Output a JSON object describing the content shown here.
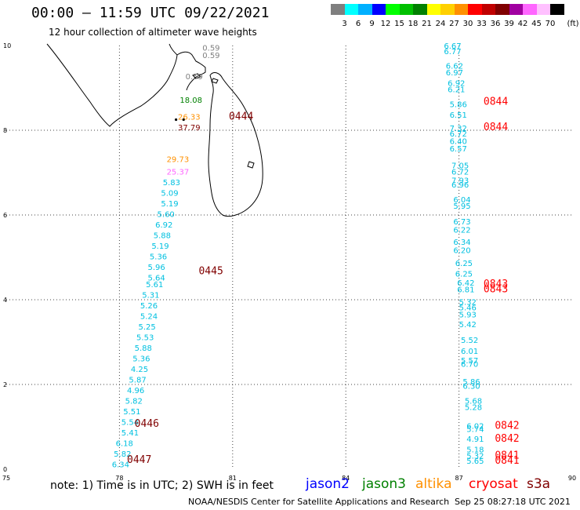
{
  "title": "00:00 – 11:59 UTC 09/22/2021",
  "subtitle": "12 hour collection of altimeter wave heights",
  "color_scale": {
    "unit": "(ft)",
    "bins": [
      {
        "label": "3",
        "color": "#7f7f7f"
      },
      {
        "label": "6",
        "color": "#00ffff"
      },
      {
        "label": "9",
        "color": "#00b0ff"
      },
      {
        "label": "12",
        "color": "#0000ff"
      },
      {
        "label": "15",
        "color": "#00ff00"
      },
      {
        "label": "18",
        "color": "#00c000"
      },
      {
        "label": "21",
        "color": "#008000"
      },
      {
        "label": "24",
        "color": "#ffff00"
      },
      {
        "label": "27",
        "color": "#ffd000"
      },
      {
        "label": "30",
        "color": "#ff9000"
      },
      {
        "label": "33",
        "color": "#ff0000"
      },
      {
        "label": "36",
        "color": "#c00000"
      },
      {
        "label": "39",
        "color": "#800000"
      },
      {
        "label": "42",
        "color": "#a000a0"
      },
      {
        "label": "45",
        "color": "#ff66ff"
      },
      {
        "label": "70",
        "color": "#ffc0ff"
      },
      {
        "label": "",
        "color": "#000000"
      }
    ]
  },
  "axes": {
    "x_ticks": [
      "75",
      "78",
      "81",
      "84",
      "87",
      "90"
    ],
    "y_ticks": [
      "0",
      "2",
      "4",
      "6",
      "8",
      "10"
    ]
  },
  "colors": {
    "cyan": "#00c0e0",
    "green": "#008000",
    "orange": "#ff9000",
    "gray": "#808080",
    "pink": "#ff66ff",
    "darkred": "#800000",
    "red": "#ff0000",
    "black": "#000000"
  },
  "west_track": {
    "points": [
      {
        "lon": 80.2,
        "lat": 9.88,
        "v": "0.59",
        "c": "gray"
      },
      {
        "lon": 80.2,
        "lat": 9.7,
        "v": "0.59",
        "c": "gray"
      },
      {
        "lon": 79.75,
        "lat": 9.2,
        "v": "0.59",
        "c": "gray"
      },
      {
        "lon": 79.6,
        "lat": 8.65,
        "v": "18.08",
        "c": "green"
      },
      {
        "lon": 79.55,
        "lat": 8.25,
        "v": "26.33",
        "c": "orange"
      },
      {
        "lon": 79.55,
        "lat": 8.0,
        "v": "37.79",
        "c": "darkred"
      },
      {
        "lon": 79.25,
        "lat": 7.25,
        "v": "29.73",
        "c": "orange"
      },
      {
        "lon": 79.25,
        "lat": 6.95,
        "v": "25.37",
        "c": "pink"
      },
      {
        "lon": 79.15,
        "lat": 6.7,
        "v": "5.83",
        "c": "cyan"
      },
      {
        "lon": 79.1,
        "lat": 6.45,
        "v": "5.09",
        "c": "cyan"
      },
      {
        "lon": 79.1,
        "lat": 6.2,
        "v": "5.19",
        "c": "cyan"
      },
      {
        "lon": 79.0,
        "lat": 5.95,
        "v": "5.60",
        "c": "cyan"
      },
      {
        "lon": 78.95,
        "lat": 5.7,
        "v": "6.92",
        "c": "cyan"
      },
      {
        "lon": 78.9,
        "lat": 5.45,
        "v": "5.88",
        "c": "cyan"
      },
      {
        "lon": 78.85,
        "lat": 5.2,
        "v": "5.19",
        "c": "cyan"
      },
      {
        "lon": 78.8,
        "lat": 4.95,
        "v": "5.36",
        "c": "cyan"
      },
      {
        "lon": 78.75,
        "lat": 4.7,
        "v": "5.96",
        "c": "cyan"
      },
      {
        "lon": 78.75,
        "lat": 4.45,
        "v": "5.64",
        "c": "cyan"
      },
      {
        "lon": 78.7,
        "lat": 4.3,
        "v": "5.61",
        "c": "cyan"
      },
      {
        "lon": 78.6,
        "lat": 4.05,
        "v": "5.31",
        "c": "cyan"
      },
      {
        "lon": 78.55,
        "lat": 3.8,
        "v": "5.26",
        "c": "cyan"
      },
      {
        "lon": 78.55,
        "lat": 3.55,
        "v": "5.24",
        "c": "cyan"
      },
      {
        "lon": 78.5,
        "lat": 3.3,
        "v": "5.25",
        "c": "cyan"
      },
      {
        "lon": 78.45,
        "lat": 3.05,
        "v": "5.53",
        "c": "cyan"
      },
      {
        "lon": 78.4,
        "lat": 2.8,
        "v": "5.88",
        "c": "cyan"
      },
      {
        "lon": 78.35,
        "lat": 2.55,
        "v": "5.36",
        "c": "cyan"
      },
      {
        "lon": 78.3,
        "lat": 2.3,
        "v": "4.25",
        "c": "cyan"
      },
      {
        "lon": 78.25,
        "lat": 2.05,
        "v": "5.87",
        "c": "cyan"
      },
      {
        "lon": 78.2,
        "lat": 1.8,
        "v": "4.96",
        "c": "cyan"
      },
      {
        "lon": 78.15,
        "lat": 1.55,
        "v": "5.82",
        "c": "cyan"
      },
      {
        "lon": 78.1,
        "lat": 1.3,
        "v": "5.51",
        "c": "cyan"
      },
      {
        "lon": 78.05,
        "lat": 1.05,
        "v": "5.54",
        "c": "cyan"
      },
      {
        "lon": 78.05,
        "lat": 0.8,
        "v": "5.41",
        "c": "cyan"
      },
      {
        "lon": 77.9,
        "lat": 0.55,
        "v": "6.18",
        "c": "cyan"
      },
      {
        "lon": 77.85,
        "lat": 0.3,
        "v": "5.82",
        "c": "cyan"
      },
      {
        "lon": 77.8,
        "lat": 0.05,
        "v": "6.34",
        "c": "cyan"
      }
    ],
    "times": [
      {
        "lon": 80.9,
        "lat": 8.25,
        "t": "0444"
      },
      {
        "lon": 80.1,
        "lat": 4.6,
        "t": "0445"
      },
      {
        "lon": 78.4,
        "lat": 1.0,
        "t": "0446"
      },
      {
        "lon": 78.2,
        "lat": 0.15,
        "t": "0447"
      }
    ]
  },
  "east_track": {
    "points": [
      {
        "lon": 86.6,
        "lat": 9.93,
        "v": "6.67",
        "c": "cyan"
      },
      {
        "lon": 86.6,
        "lat": 9.8,
        "v": "6.77",
        "c": "cyan"
      },
      {
        "lon": 86.65,
        "lat": 9.45,
        "v": "6.62",
        "c": "cyan"
      },
      {
        "lon": 86.65,
        "lat": 9.3,
        "v": "6.97",
        "c": "cyan"
      },
      {
        "lon": 86.7,
        "lat": 9.05,
        "v": "6.92",
        "c": "cyan"
      },
      {
        "lon": 86.7,
        "lat": 8.9,
        "v": "6.21",
        "c": "cyan"
      },
      {
        "lon": 86.75,
        "lat": 8.55,
        "v": "5.86",
        "c": "cyan"
      },
      {
        "lon": 86.75,
        "lat": 8.3,
        "v": "6.51",
        "c": "cyan"
      },
      {
        "lon": 86.75,
        "lat": 7.98,
        "v": "7.32",
        "c": "cyan"
      },
      {
        "lon": 86.75,
        "lat": 7.85,
        "v": "6.72",
        "c": "cyan"
      },
      {
        "lon": 86.75,
        "lat": 7.68,
        "v": "6.40",
        "c": "cyan"
      },
      {
        "lon": 86.75,
        "lat": 7.5,
        "v": "6.57",
        "c": "cyan"
      },
      {
        "lon": 86.8,
        "lat": 7.1,
        "v": "7.05",
        "c": "cyan"
      },
      {
        "lon": 86.8,
        "lat": 6.95,
        "v": "6.72",
        "c": "cyan"
      },
      {
        "lon": 86.8,
        "lat": 6.75,
        "v": "7.93",
        "c": "cyan"
      },
      {
        "lon": 86.8,
        "lat": 6.65,
        "v": "6.96",
        "c": "cyan"
      },
      {
        "lon": 86.85,
        "lat": 6.3,
        "v": "6.04",
        "c": "cyan"
      },
      {
        "lon": 86.85,
        "lat": 6.15,
        "v": "5.95",
        "c": "cyan"
      },
      {
        "lon": 86.85,
        "lat": 5.78,
        "v": "6.73",
        "c": "cyan"
      },
      {
        "lon": 86.85,
        "lat": 5.58,
        "v": "6.22",
        "c": "cyan"
      },
      {
        "lon": 86.85,
        "lat": 5.3,
        "v": "6.34",
        "c": "cyan"
      },
      {
        "lon": 86.85,
        "lat": 5.1,
        "v": "6.20",
        "c": "cyan"
      },
      {
        "lon": 86.9,
        "lat": 4.8,
        "v": "6.25",
        "c": "cyan"
      },
      {
        "lon": 86.9,
        "lat": 4.55,
        "v": "6.25",
        "c": "cyan"
      },
      {
        "lon": 86.95,
        "lat": 4.33,
        "v": "6.42",
        "c": "cyan"
      },
      {
        "lon": 86.95,
        "lat": 4.18,
        "v": "6.81",
        "c": "cyan"
      },
      {
        "lon": 87.0,
        "lat": 3.88,
        "v": "5.32",
        "c": "cyan"
      },
      {
        "lon": 87.0,
        "lat": 3.75,
        "v": "5.46",
        "c": "cyan"
      },
      {
        "lon": 87.0,
        "lat": 3.58,
        "v": "5.93",
        "c": "cyan"
      },
      {
        "lon": 87.0,
        "lat": 3.35,
        "v": "5.42",
        "c": "cyan"
      },
      {
        "lon": 87.05,
        "lat": 2.98,
        "v": "5.52",
        "c": "cyan"
      },
      {
        "lon": 87.05,
        "lat": 2.72,
        "v": "6.01",
        "c": "cyan"
      },
      {
        "lon": 87.05,
        "lat": 2.5,
        "v": "5.57",
        "c": "cyan"
      },
      {
        "lon": 87.05,
        "lat": 2.42,
        "v": "6.70",
        "c": "cyan"
      },
      {
        "lon": 87.1,
        "lat": 2.0,
        "v": "5.86",
        "c": "cyan"
      },
      {
        "lon": 87.1,
        "lat": 1.9,
        "v": "6.30",
        "c": "cyan"
      },
      {
        "lon": 87.15,
        "lat": 1.55,
        "v": "5.68",
        "c": "cyan"
      },
      {
        "lon": 87.15,
        "lat": 1.4,
        "v": "5.28",
        "c": "cyan"
      },
      {
        "lon": 87.2,
        "lat": 0.95,
        "v": "6.02",
        "c": "cyan"
      },
      {
        "lon": 87.2,
        "lat": 0.88,
        "v": "5.74",
        "c": "cyan"
      },
      {
        "lon": 87.2,
        "lat": 0.65,
        "v": "4.91",
        "c": "cyan"
      },
      {
        "lon": 87.2,
        "lat": 0.4,
        "v": "5.18",
        "c": "cyan"
      },
      {
        "lon": 87.2,
        "lat": 0.25,
        "v": "5.32",
        "c": "cyan"
      },
      {
        "lon": 87.2,
        "lat": 0.13,
        "v": "5.65",
        "c": "cyan"
      }
    ],
    "times": [
      {
        "lon": 87.65,
        "lat": 8.6,
        "t": "0844"
      },
      {
        "lon": 87.65,
        "lat": 8.0,
        "t": "0844"
      },
      {
        "lon": 87.65,
        "lat": 4.3,
        "t": "0843"
      },
      {
        "lon": 87.65,
        "lat": 4.18,
        "t": "0843"
      },
      {
        "lon": 87.95,
        "lat": 0.95,
        "t": "0842"
      },
      {
        "lon": 87.95,
        "lat": 0.65,
        "t": "0842"
      },
      {
        "lon": 87.95,
        "lat": 0.25,
        "t": "0841"
      },
      {
        "lon": 87.95,
        "lat": 0.13,
        "t": "0841"
      }
    ]
  },
  "footer": {
    "note": "note: 1) Time is in UTC; 2) SWH is in feet",
    "satellites": [
      {
        "name": "jason2",
        "color": "#0000ff"
      },
      {
        "name": "jason3",
        "color": "#008000"
      },
      {
        "name": "altika",
        "color": "#ff9000"
      },
      {
        "name": "cryosat",
        "color": "#ff0000"
      },
      {
        "name": "s3a",
        "color": "#800000"
      }
    ],
    "credit": "NOAA/NESDIS Center for Satellite Applications and Research",
    "generated": "Sep 25 08:27:18 UTC 2021"
  }
}
